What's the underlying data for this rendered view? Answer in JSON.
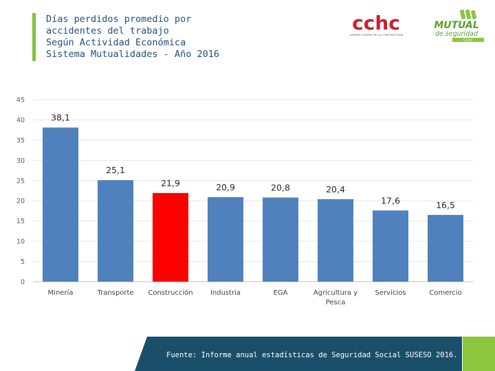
{
  "title_lines": [
    "Días perdidos promedio por",
    "accidentes del trabajo",
    "Según Actividad Económica",
    "Sistema Mutualidades - Año 2016"
  ],
  "logos": {
    "cchc": {
      "text": "cchc",
      "subtext": "CAMARA CHILENA DE LA CONSTRUCCION"
    },
    "mutual": {
      "text": "MUTUAL",
      "subtext": "de seguridad",
      "tag": "CChC"
    }
  },
  "colors": {
    "bar": "#4f81bd",
    "highlight": "#ff0000",
    "accent_green": "#7fc241",
    "title": "#1f4e79",
    "footer": "#1a4f6a"
  },
  "chart_data": {
    "type": "bar",
    "title": "",
    "xlabel": "",
    "ylabel": "",
    "categories": [
      [
        "Minería"
      ],
      [
        "Transporte"
      ],
      [
        "Construcción"
      ],
      [
        "Industria"
      ],
      [
        "EGA"
      ],
      [
        "Agricultura y",
        "Pesca"
      ],
      [
        "Servicios"
      ],
      [
        "Comercio"
      ]
    ],
    "values": [
      38.1,
      25.1,
      21.9,
      20.9,
      20.8,
      20.4,
      17.6,
      16.5
    ],
    "data_labels": [
      "38,1",
      "25,1",
      "21,9",
      "20,9",
      "20,8",
      "20,4",
      "17,6",
      "16,5"
    ],
    "highlight_index": 2,
    "ylim": [
      0,
      45
    ],
    "yticks": [
      0,
      5,
      10,
      15,
      20,
      25,
      30,
      35,
      40,
      45
    ],
    "grid": true,
    "legend": "none"
  },
  "footer": {
    "source_text": "Fuente: Informe anual estadísticas de Seguridad Social SUSESO 2016."
  }
}
